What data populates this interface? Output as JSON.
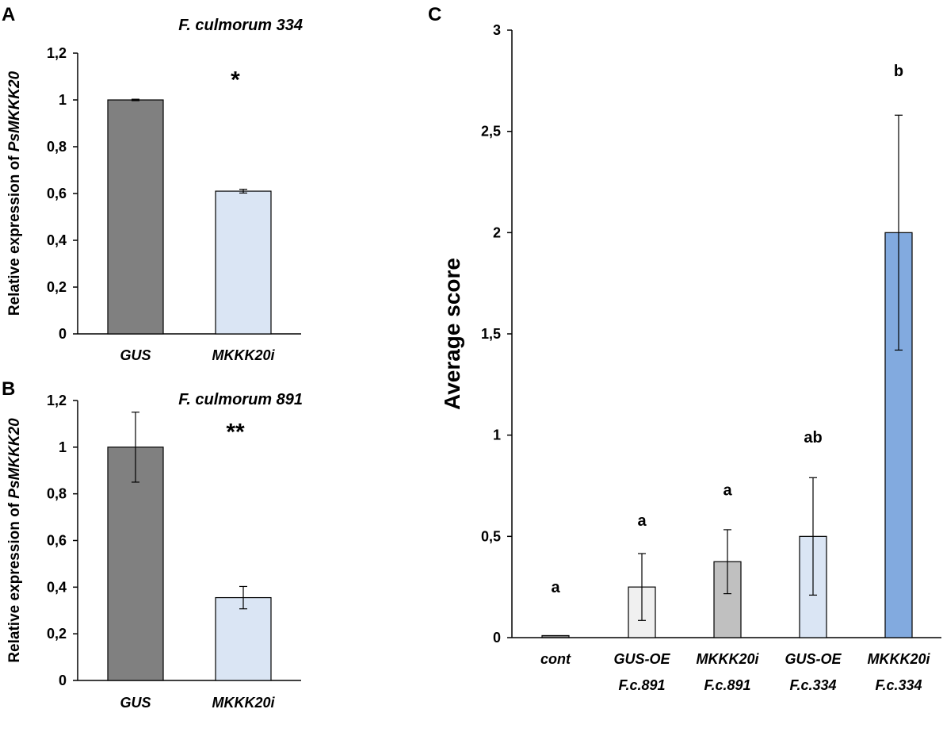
{
  "colors": {
    "dark_gray": "#808080",
    "light_blue": "#dae5f4",
    "very_light_gray": "#f0f0f0",
    "medium_gray": "#c0c0c0",
    "medium_blue": "#82aadf",
    "axis": "#000000"
  },
  "chart_data": [
    {
      "panel": "A",
      "type": "bar",
      "title": "F. culmorum 334",
      "ylabel_prefix": "Relative expression of ",
      "ylabel_gene": "PsMKKK20",
      "xlabel": "",
      "ylim": [
        0,
        1.2
      ],
      "yticks": [
        0,
        0.2,
        0.4,
        0.6,
        0.8,
        1,
        1.2
      ],
      "ytick_labels": [
        "0",
        "0,2",
        "0,4",
        "0,6",
        "0,8",
        "1",
        "1,2"
      ],
      "categories": [
        "GUS",
        "MKKK20i"
      ],
      "values": [
        1.0,
        0.61
      ],
      "errors": [
        0.003,
        0.008
      ],
      "bar_colors": [
        "#808080",
        "#dae5f4"
      ],
      "annotations": [
        {
          "text": "*",
          "category_index": 1,
          "value": 1.1
        }
      ]
    },
    {
      "panel": "B",
      "type": "bar",
      "title": "F. culmorum 891",
      "ylabel_prefix": "Relative expression of ",
      "ylabel_gene": "PsMKKK20",
      "xlabel": "",
      "ylim": [
        0,
        1.2
      ],
      "yticks": [
        0,
        0.2,
        0.4,
        0.6,
        0.8,
        1,
        1.2
      ],
      "ytick_labels": [
        "0",
        "0,2",
        "0,4",
        "0,6",
        "0,8",
        "1",
        "1,2"
      ],
      "categories": [
        "GUS",
        "MKKK20i"
      ],
      "values": [
        1.0,
        0.355
      ],
      "errors": [
        0.15,
        0.048
      ],
      "bar_colors": [
        "#808080",
        "#dae5f4"
      ],
      "annotations": [
        {
          "text": "**",
          "category_index": 1,
          "value": 1.08
        }
      ]
    },
    {
      "panel": "C",
      "type": "bar",
      "title": "",
      "ylabel": "Average score",
      "xlabel": "",
      "ylim": [
        0,
        3
      ],
      "yticks": [
        0,
        0.5,
        1,
        1.5,
        2,
        2.5,
        3
      ],
      "ytick_labels": [
        "0",
        "0,5",
        "1",
        "1,5",
        "2",
        "2,5",
        "3"
      ],
      "categories": [
        [
          "cont"
        ],
        [
          "GUS-OE",
          "F.c.891"
        ],
        [
          "MKKK20i",
          "F.c.891"
        ],
        [
          "GUS-OE",
          "F.c.334"
        ],
        [
          "MKKK20i",
          "F.c.334"
        ]
      ],
      "values": [
        0.01,
        0.25,
        0.375,
        0.5,
        2.0
      ],
      "errors": [
        0,
        0.165,
        0.158,
        0.29,
        0.58
      ],
      "bar_colors": [
        "#808080",
        "#f0f0f0",
        "#c0c0c0",
        "#dae5f4",
        "#82aadf"
      ],
      "group_letters": [
        "a",
        "a",
        "a",
        "ab",
        "b"
      ],
      "group_letter_values": [
        0.25,
        0.58,
        0.73,
        0.99,
        2.8
      ]
    }
  ]
}
